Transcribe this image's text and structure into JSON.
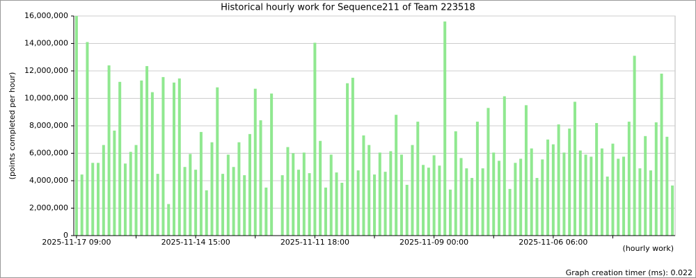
{
  "chart_data": {
    "type": "bar",
    "title": "Historical hourly work for Sequence211 of Team 223518",
    "y_label": "(points completed per hour)",
    "x_label": "(hourly work)",
    "footer": "Graph creation timer (ms): 0.022",
    "color": "#90e890",
    "grid": true,
    "ylim": [
      0,
      16000000
    ],
    "yticks": [
      0,
      {
        "value": 2000000,
        "label": "2,000,000"
      },
      {
        "value": 4000000,
        "label": "4,000,000"
      },
      {
        "value": 6000000,
        "label": "6,000,000"
      },
      {
        "value": 8000000,
        "label": "8,000,000"
      },
      {
        "value": 10000000,
        "label": "10,000,000"
      },
      {
        "value": 12000000,
        "label": "12,000,000"
      },
      {
        "value": 14000000,
        "label": "14,000,000"
      },
      {
        "value": 16000000,
        "label": "16,000,000"
      }
    ],
    "categories": [
      "2025-11-17 09:00",
      null,
      null,
      null,
      null,
      null,
      null,
      null,
      null,
      null,
      null,
      null,
      null,
      null,
      null,
      null,
      null,
      null,
      null,
      null,
      null,
      null,
      "2025-11-14 15:00",
      null,
      null,
      null,
      null,
      null,
      null,
      null,
      null,
      null,
      null,
      null,
      null,
      null,
      null,
      null,
      null,
      null,
      null,
      null,
      null,
      null,
      "2025-11-11 18:00",
      null,
      null,
      null,
      null,
      null,
      null,
      null,
      null,
      null,
      null,
      null,
      null,
      null,
      null,
      null,
      null,
      null,
      null,
      null,
      null,
      null,
      "2025-11-09 00:00",
      null,
      null,
      null,
      null,
      null,
      null,
      null,
      null,
      null,
      null,
      null,
      null,
      null,
      null,
      null,
      null,
      null,
      null,
      null,
      null,
      null,
      "2025-11-06 06:00",
      null,
      null,
      null,
      null,
      null,
      null,
      null,
      null,
      null,
      null,
      null,
      null,
      null,
      null,
      null,
      null,
      null,
      null,
      null,
      null,
      null,
      null
    ],
    "values": [
      16000000,
      4450000,
      14100000,
      5300000,
      5300000,
      6600000,
      12400000,
      7650000,
      11200000,
      5250000,
      6100000,
      6600000,
      11300000,
      12350000,
      10450000,
      4500000,
      11550000,
      2300000,
      11150000,
      11450000,
      5000000,
      5950000,
      4800000,
      7550000,
      3300000,
      6800000,
      10800000,
      4500000,
      5900000,
      5000000,
      6800000,
      4400000,
      7400000,
      10700000,
      8400000,
      3500000,
      10350000,
      0,
      4400000,
      6450000,
      6000000,
      4800000,
      6050000,
      4550000,
      14050000,
      6900000,
      3500000,
      5900000,
      4600000,
      3850000,
      11100000,
      11500000,
      4750000,
      7300000,
      6600000,
      4450000,
      6050000,
      4650000,
      6150000,
      8800000,
      5900000,
      3700000,
      6600000,
      8300000,
      5150000,
      4950000,
      5850000,
      5100000,
      15600000,
      3350000,
      7600000,
      5650000,
      4900000,
      4200000,
      8300000,
      4900000,
      9300000,
      6050000,
      5450000,
      10150000,
      3400000,
      5300000,
      5600000,
      9500000,
      6350000,
      4200000,
      5550000,
      7000000,
      6650000,
      8100000,
      6050000,
      7800000,
      9750000,
      6200000,
      5900000,
      5750000,
      8200000,
      6350000,
      4300000,
      6700000,
      5600000,
      5750000,
      8300000,
      13100000,
      4900000,
      7250000,
      4750000,
      8250000,
      11800000,
      7200000,
      3650000
    ]
  }
}
